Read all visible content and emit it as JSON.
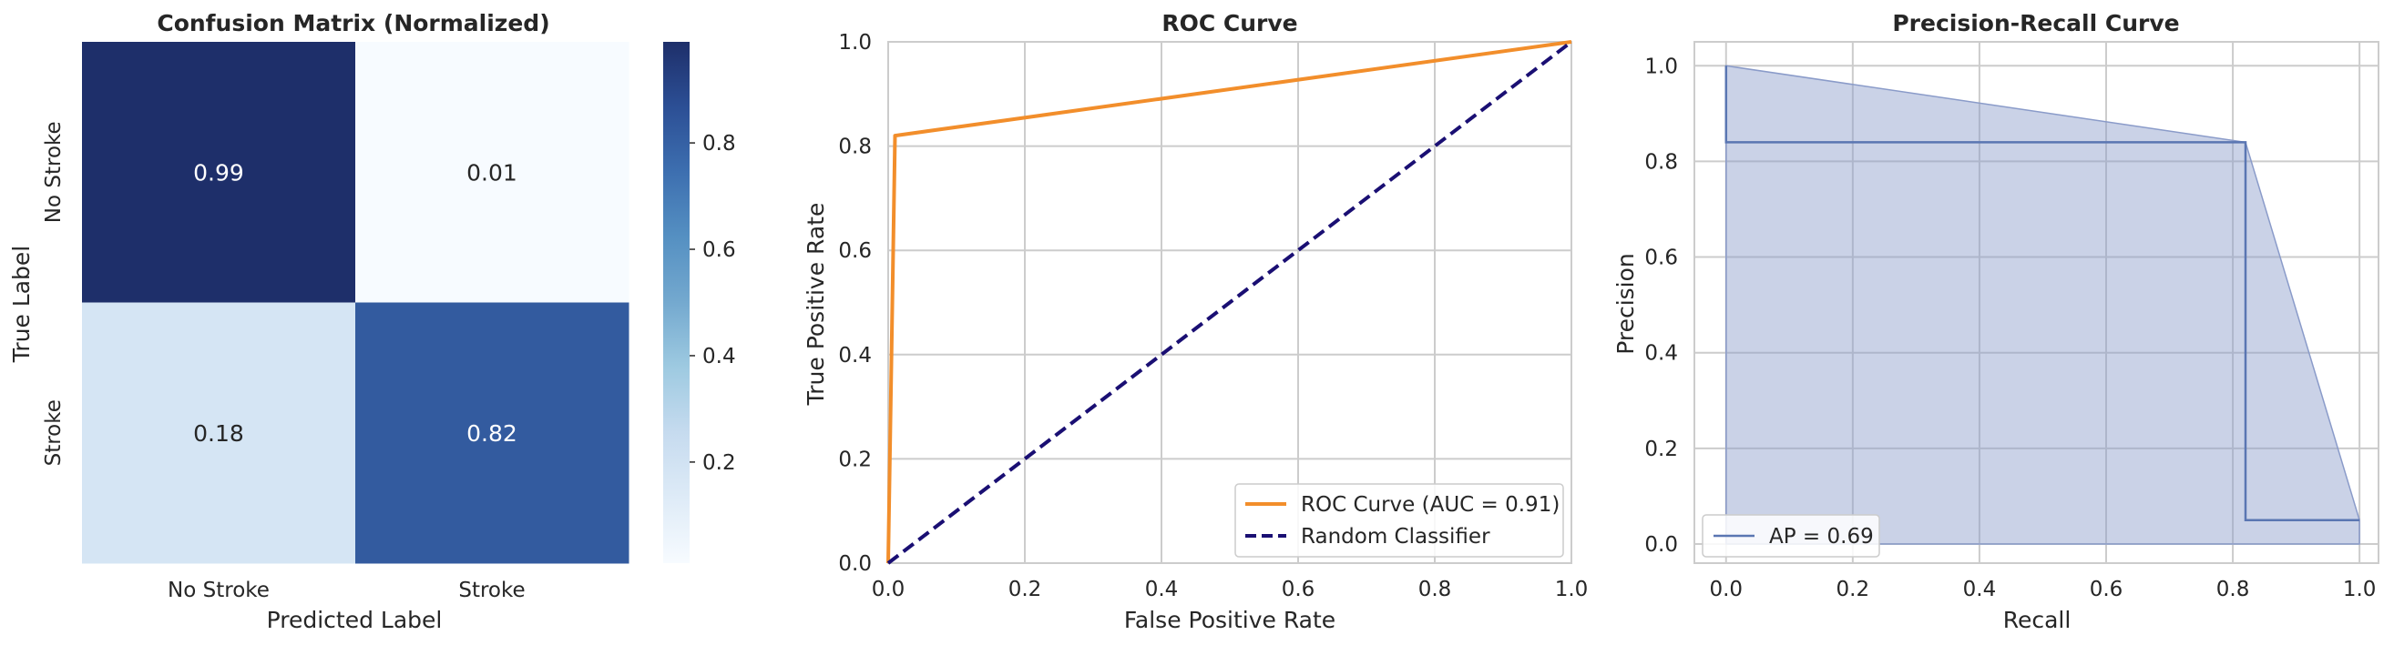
{
  "chart_data": [
    {
      "type": "heatmap",
      "title": "Confusion Matrix (Normalized)",
      "xlabel": "Predicted Label",
      "ylabel": "True Label",
      "x_categories": [
        "No Stroke",
        "Stroke"
      ],
      "y_categories": [
        "No Stroke",
        "Stroke"
      ],
      "values": [
        [
          0.99,
          0.01
        ],
        [
          0.18,
          0.82
        ]
      ],
      "value_labels": [
        [
          "0.99",
          "0.01"
        ],
        [
          "0.18",
          "0.82"
        ]
      ],
      "colorbar": {
        "ticks": [
          0.2,
          0.4,
          0.6,
          0.8
        ],
        "tick_labels": [
          "0.2",
          "0.4",
          "0.6",
          "0.8"
        ],
        "range": [
          0.01,
          0.99
        ],
        "colormap": "Blues"
      }
    },
    {
      "type": "line",
      "title": "ROC Curve",
      "xlabel": "False Positive Rate",
      "ylabel": "True Positive Rate",
      "xlim": [
        0,
        1
      ],
      "ylim": [
        0,
        1
      ],
      "xticks": [
        "0.0",
        "0.2",
        "0.4",
        "0.6",
        "0.8",
        "1.0"
      ],
      "yticks": [
        "0.0",
        "0.2",
        "0.4",
        "0.6",
        "0.8",
        "1.0"
      ],
      "grid": true,
      "legend_position": "lower-right",
      "series": [
        {
          "name": "ROC Curve (AUC = 0.91)",
          "color": "#f28e2b",
          "dash": "solid",
          "x": [
            0.0,
            0.01,
            1.0
          ],
          "y": [
            0.0,
            0.82,
            1.0
          ]
        },
        {
          "name": "Random Classifier",
          "color": "#1a0f73",
          "dash": "dashed",
          "x": [
            0.0,
            1.0
          ],
          "y": [
            0.0,
            1.0
          ]
        }
      ]
    },
    {
      "type": "area",
      "title": "Precision-Recall Curve",
      "xlabel": "Recall",
      "ylabel": "Precision",
      "xlim": [
        -0.05,
        1.03
      ],
      "ylim": [
        -0.04,
        1.05
      ],
      "xticks": [
        "0.0",
        "0.2",
        "0.4",
        "0.6",
        "0.8",
        "1.0"
      ],
      "yticks": [
        "0.0",
        "0.2",
        "0.4",
        "0.6",
        "0.8",
        "1.0"
      ],
      "grid": true,
      "legend_position": "lower-left",
      "step_series": {
        "name": "AP = 0.69",
        "color": "#5a76b2",
        "x": [
          0.0,
          0.0,
          0.82,
          0.82,
          1.0
        ],
        "y": [
          1.0,
          0.84,
          0.84,
          0.05,
          0.05
        ]
      },
      "fill": {
        "color": "#8a9bc9",
        "x": [
          0.0,
          0.82,
          1.0
        ],
        "y": [
          1.0,
          0.84,
          0.05
        ]
      }
    }
  ]
}
